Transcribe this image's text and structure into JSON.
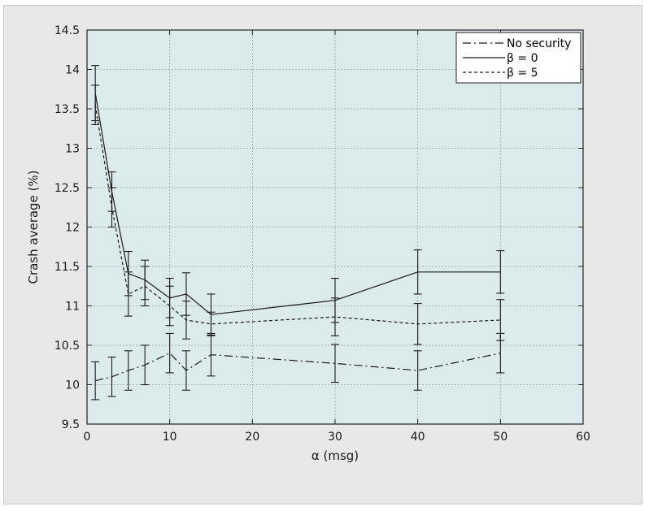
{
  "chart_data": {
    "type": "line",
    "title": "",
    "xlabel": "α (msg)",
    "ylabel": "Crash average (%)",
    "xlim": [
      0,
      60
    ],
    "ylim": [
      9.5,
      14.5
    ],
    "xticks": [
      0,
      10,
      20,
      30,
      40,
      50,
      60
    ],
    "yticks": [
      9.5,
      10,
      10.5,
      11,
      11.5,
      12,
      12.5,
      13,
      13.5,
      14,
      14.5
    ],
    "grid": true,
    "legend_position": "top-right",
    "colors": {
      "plot_background": "#dbeaea",
      "frame_background": "#e8e8e8",
      "line": "#1a1a1a",
      "grid": "#9aa6a6"
    },
    "series": [
      {
        "name": "No security",
        "style": "dashdot",
        "x": [
          1,
          3,
          5,
          7,
          10,
          12,
          15,
          30,
          40,
          50
        ],
        "y": [
          10.05,
          10.1,
          10.18,
          10.25,
          10.4,
          10.18,
          10.38,
          10.27,
          10.18,
          10.4
        ],
        "err": [
          0.24,
          0.25,
          0.25,
          0.25,
          0.25,
          0.25,
          0.27,
          0.24,
          0.25,
          0.25
        ]
      },
      {
        "name": "β = 0",
        "style": "solid",
        "x": [
          1,
          3,
          5,
          7,
          10,
          12,
          15,
          30,
          40,
          50
        ],
        "y": [
          13.7,
          12.45,
          11.41,
          11.33,
          11.1,
          11.15,
          10.89,
          11.07,
          11.43,
          11.43
        ],
        "err": [
          0.35,
          0.25,
          0.28,
          0.25,
          0.25,
          0.27,
          0.26,
          0.28,
          0.28,
          0.27
        ]
      },
      {
        "name": "β = 5",
        "style": "dashed",
        "x": [
          1,
          3,
          5,
          7,
          10,
          12,
          15,
          30,
          40,
          50
        ],
        "y": [
          13.55,
          12.25,
          11.15,
          11.25,
          11.0,
          10.82,
          10.77,
          10.86,
          10.77,
          10.82
        ],
        "err": [
          0.25,
          0.25,
          0.28,
          0.25,
          0.25,
          0.24,
          0.15,
          0.24,
          0.26,
          0.26
        ]
      }
    ]
  }
}
